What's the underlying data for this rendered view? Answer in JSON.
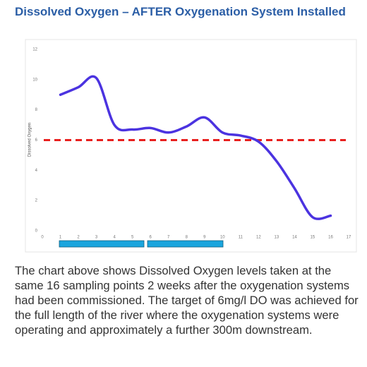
{
  "heading": "Dissolved Oxygen – AFTER Oxygenation System Installed",
  "chart_data": {
    "type": "line",
    "y_label": "Dissolved Oxygen",
    "x": [
      1,
      2,
      3,
      4,
      5,
      6,
      7,
      8,
      9,
      10,
      11,
      12,
      13,
      14,
      15,
      16
    ],
    "series": [
      {
        "color": "#4b33e0",
        "values": [
          9.0,
          9.5,
          10.1,
          7.0,
          6.7,
          6.8,
          6.5,
          6.9,
          7.5,
          6.5,
          6.3,
          5.9,
          4.6,
          2.8,
          0.9,
          1.0
        ]
      }
    ],
    "reference_line": {
      "value": 6,
      "color": "#e8201e"
    },
    "xlim": [
      0,
      17
    ],
    "xticks": [
      0,
      1,
      2,
      3,
      4,
      5,
      6,
      7,
      8,
      9,
      10,
      11,
      12,
      13,
      14,
      15,
      16,
      17
    ],
    "ylim": [
      0,
      12
    ],
    "yticks": [
      0,
      2,
      4,
      6,
      8,
      10,
      12
    ],
    "grid": false
  },
  "paragraph": "The chart above shows Dissolved Oxygen levels taken at the same 16 sampling points 2 weeks after the oxygenation systems had been commissioned. The target of 6mg/l DO was achieved for the full length of the river where the oxygenation systems were operating and approximately a further 300m downstream."
}
